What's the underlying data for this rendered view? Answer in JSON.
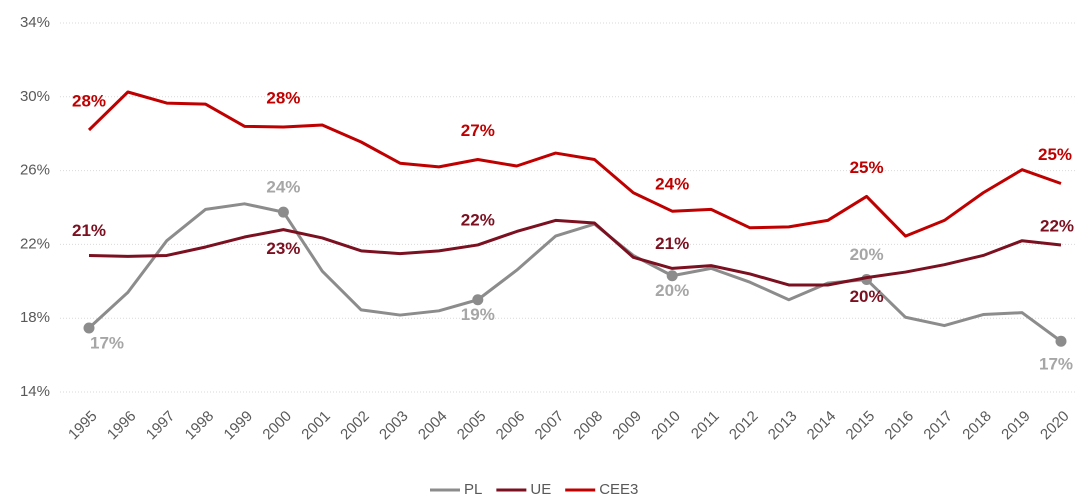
{
  "chart_data": {
    "type": "line",
    "categories": [
      "1995",
      "1996",
      "1997",
      "1998",
      "1999",
      "2000",
      "2001",
      "2002",
      "2003",
      "2004",
      "2005",
      "2006",
      "2007",
      "2008",
      "2009",
      "2010",
      "2011",
      "2012",
      "2013",
      "2014",
      "2015",
      "2016",
      "2017",
      "2018",
      "2019",
      "2020"
    ],
    "series": [
      {
        "name": "PL",
        "color": "#8c8c8c",
        "label_color": "#a6a6a6",
        "values": [
          17.47,
          19.4,
          22.2,
          23.9,
          24.2,
          23.75,
          20.55,
          18.45,
          18.17,
          18.4,
          19.0,
          20.6,
          22.45,
          23.1,
          21.4,
          20.3,
          20.7,
          19.95,
          19.0,
          19.9,
          20.1,
          18.05,
          17.6,
          18.2,
          18.3,
          16.75
        ],
        "value_labels": [
          "17%",
          null,
          null,
          null,
          null,
          "24%",
          null,
          null,
          null,
          null,
          "19%",
          null,
          null,
          null,
          null,
          "20%",
          null,
          null,
          null,
          null,
          "20%",
          null,
          null,
          null,
          null,
          "17%"
        ]
      },
      {
        "name": "UE",
        "color": "#7b1020",
        "label_color": "#7b1020",
        "values": [
          21.4,
          21.35,
          21.4,
          21.86,
          22.4,
          22.8,
          22.35,
          21.65,
          21.5,
          21.65,
          21.97,
          22.7,
          23.3,
          23.16,
          21.3,
          20.7,
          20.85,
          20.4,
          19.8,
          19.8,
          20.2,
          20.5,
          20.9,
          21.4,
          22.2,
          21.97
        ],
        "value_labels": [
          "21%",
          null,
          null,
          null,
          null,
          "23%",
          null,
          null,
          null,
          null,
          "22%",
          null,
          null,
          null,
          null,
          "21%",
          null,
          null,
          null,
          null,
          "20%",
          null,
          null,
          null,
          null,
          "22%"
        ]
      },
      {
        "name": "CEE3",
        "color": "#c00000",
        "label_color": "#c00000",
        "values": [
          28.2,
          30.26,
          29.66,
          29.6,
          28.4,
          28.36,
          28.47,
          27.55,
          26.4,
          26.2,
          26.6,
          26.25,
          26.95,
          26.6,
          24.8,
          23.8,
          23.9,
          22.9,
          22.95,
          23.3,
          24.6,
          22.45,
          23.3,
          24.8,
          26.05,
          25.3
        ],
        "value_labels": [
          "28%",
          null,
          null,
          null,
          null,
          "28%",
          null,
          null,
          null,
          null,
          "27%",
          null,
          null,
          null,
          null,
          "24%",
          null,
          null,
          null,
          null,
          "25%",
          null,
          null,
          null,
          null,
          "25%"
        ]
      }
    ],
    "ylim": [
      14,
      34
    ],
    "yticks": [
      {
        "value": 14,
        "label": "14%"
      },
      {
        "value": 18,
        "label": "18%"
      },
      {
        "value": 22,
        "label": "22%"
      },
      {
        "value": 26,
        "label": "26%"
      },
      {
        "value": 30,
        "label": "30%"
      },
      {
        "value": 34,
        "label": "34%"
      }
    ],
    "grid": true,
    "legend": "bottom"
  }
}
